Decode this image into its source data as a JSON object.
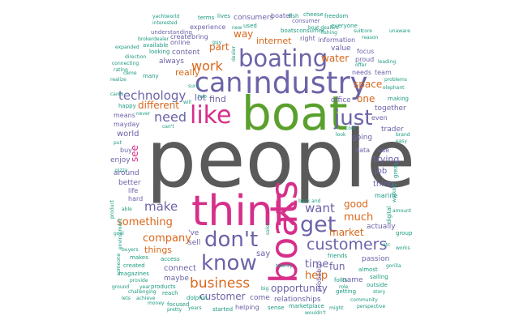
{
  "colors": {
    "gray": "#5a5a5a",
    "green": "#5aa02c",
    "purple": "#6b63a8",
    "magenta": "#d62f8a",
    "orange": "#d9671b",
    "teal": "#1c9a80"
  },
  "words": [
    {
      "text": "people",
      "color": "gray"
    },
    {
      "text": "boat",
      "color": "green"
    },
    {
      "text": "industry",
      "color": "purple"
    },
    {
      "text": "think",
      "color": "magenta"
    },
    {
      "text": "boating",
      "color": "purple"
    },
    {
      "text": "can",
      "color": "purple"
    },
    {
      "text": "like",
      "color": "magenta"
    },
    {
      "text": "boats",
      "color": "magenta"
    },
    {
      "text": "don't",
      "color": "purple"
    },
    {
      "text": "get",
      "color": "purple"
    },
    {
      "text": "just",
      "color": "purple"
    },
    {
      "text": "know",
      "color": "purple"
    },
    {
      "text": "customers",
      "color": "purple"
    },
    {
      "text": "business",
      "color": "orange"
    },
    {
      "text": "technology",
      "color": "purple"
    },
    {
      "text": "work",
      "color": "orange"
    },
    {
      "text": "need",
      "color": "purple"
    },
    {
      "text": "make",
      "color": "purple"
    },
    {
      "text": "want",
      "color": "purple"
    },
    {
      "text": "company",
      "color": "orange"
    },
    {
      "text": "something",
      "color": "orange"
    },
    {
      "text": "customer",
      "color": "purple"
    },
    {
      "text": "opportunity",
      "color": "purple"
    },
    {
      "text": "time",
      "color": "purple"
    },
    {
      "text": "help",
      "color": "orange"
    },
    {
      "text": "much",
      "color": "orange"
    },
    {
      "text": "market",
      "color": "orange"
    },
    {
      "text": "fun",
      "color": "purple"
    },
    {
      "text": "internet",
      "color": "orange"
    },
    {
      "text": "water",
      "color": "orange"
    },
    {
      "text": "space",
      "color": "orange"
    },
    {
      "text": "really",
      "color": "orange"
    },
    {
      "text": "different",
      "color": "orange"
    },
    {
      "text": "way",
      "color": "orange"
    },
    {
      "text": "part",
      "color": "orange"
    },
    {
      "text": "lot",
      "color": "purple"
    },
    {
      "text": "find",
      "color": "purple"
    },
    {
      "text": "one",
      "color": "orange"
    },
    {
      "text": "good",
      "color": "orange"
    },
    {
      "text": "things",
      "color": "orange"
    },
    {
      "text": "trying",
      "color": "purple"
    },
    {
      "text": "job",
      "color": "purple"
    },
    {
      "text": "thing",
      "color": "purple"
    },
    {
      "text": "see",
      "color": "magenta"
    },
    {
      "text": "world",
      "color": "purple"
    },
    {
      "text": "say",
      "color": "purple"
    },
    {
      "text": "connect",
      "color": "purple"
    },
    {
      "text": "'ve",
      "color": "purple"
    },
    {
      "text": "sell",
      "color": "purple"
    },
    {
      "text": "relationships",
      "color": "purple"
    },
    {
      "text": "come",
      "color": "purple"
    },
    {
      "text": "helping",
      "color": "purple"
    },
    {
      "text": "sense",
      "color": "teal"
    },
    {
      "text": "marketplace",
      "color": "teal"
    },
    {
      "text": "started",
      "color": "teal"
    },
    {
      "text": "name",
      "color": "purple"
    },
    {
      "text": "always",
      "color": "purple"
    },
    {
      "text": "content",
      "color": "purple"
    },
    {
      "text": "create",
      "color": "purple"
    },
    {
      "text": "bring",
      "color": "purple"
    },
    {
      "text": "experience",
      "color": "purple"
    },
    {
      "text": "online",
      "color": "purple"
    },
    {
      "text": "available",
      "color": "teal"
    },
    {
      "text": "looking",
      "color": "teal"
    },
    {
      "text": "value",
      "color": "purple"
    },
    {
      "text": "focus",
      "color": "purple"
    },
    {
      "text": "proud",
      "color": "purple"
    },
    {
      "text": "needs",
      "color": "purple"
    },
    {
      "text": "team",
      "color": "purple"
    },
    {
      "text": "together",
      "color": "purple"
    },
    {
      "text": "making",
      "color": "teal"
    },
    {
      "text": "even",
      "color": "purple"
    },
    {
      "text": "going",
      "color": "purple"
    },
    {
      "text": "trader",
      "color": "purple"
    },
    {
      "text": "data",
      "color": "purple"
    },
    {
      "text": "use",
      "color": "purple"
    },
    {
      "text": "great",
      "color": "teal"
    },
    {
      "text": "marine",
      "color": "teal"
    },
    {
      "text": "actually",
      "color": "purple"
    },
    {
      "text": "digital",
      "color": "teal"
    },
    {
      "text": "group",
      "color": "teal"
    },
    {
      "text": "around",
      "color": "purple"
    },
    {
      "text": "better",
      "color": "purple"
    },
    {
      "text": "enjoy",
      "color": "purple"
    },
    {
      "text": "buy",
      "color": "purple"
    },
    {
      "text": "life",
      "color": "purple"
    },
    {
      "text": "hard",
      "color": "purple"
    },
    {
      "text": "means",
      "color": "purple"
    },
    {
      "text": "mayday",
      "color": "purple"
    },
    {
      "text": "happy",
      "color": "teal"
    },
    {
      "text": "folks",
      "color": "teal"
    },
    {
      "text": "getting",
      "color": "teal"
    },
    {
      "text": "sailing",
      "color": "teal"
    },
    {
      "text": "outside",
      "color": "teal"
    },
    {
      "text": "passion",
      "color": "purple"
    },
    {
      "text": "almost",
      "color": "teal"
    },
    {
      "text": "friends",
      "color": "teal"
    },
    {
      "text": "probably",
      "color": "purple"
    },
    {
      "text": "maybe",
      "color": "purple"
    },
    {
      "text": "dolphin",
      "color": "teal"
    },
    {
      "text": "focused",
      "color": "teal"
    },
    {
      "text": "products",
      "color": "teal"
    },
    {
      "text": "reach",
      "color": "teal"
    },
    {
      "text": "access",
      "color": "teal"
    },
    {
      "text": "makes",
      "color": "teal"
    },
    {
      "text": "created",
      "color": "teal"
    },
    {
      "text": "magazines",
      "color": "teal"
    },
    {
      "text": "provide",
      "color": "teal"
    },
    {
      "text": "year",
      "color": "teal"
    },
    {
      "text": "buyers",
      "color": "teal"
    },
    {
      "text": "environment",
      "color": "teal"
    },
    {
      "text": "someone",
      "color": "teal"
    },
    {
      "text": "consumers",
      "color": "purple"
    },
    {
      "text": "boater",
      "color": "purple"
    },
    {
      "text": "fish",
      "color": "teal"
    },
    {
      "text": "cheese",
      "color": "teal"
    },
    {
      "text": "freedom",
      "color": "teal"
    },
    {
      "text": "everyone",
      "color": "teal"
    },
    {
      "text": "information",
      "color": "purple"
    },
    {
      "text": "right",
      "color": "purple"
    },
    {
      "text": "consumer",
      "color": "purple"
    },
    {
      "text": "boatsconsumer",
      "color": "teal"
    },
    {
      "text": "used",
      "color": "teal"
    },
    {
      "text": "understanding",
      "color": "purple"
    },
    {
      "text": "terms",
      "color": "teal"
    },
    {
      "text": "lives",
      "color": "teal"
    },
    {
      "text": "yachtworld",
      "color": "teal"
    },
    {
      "text": "office",
      "color": "purple"
    },
    {
      "text": "problems",
      "color": "teal"
    },
    {
      "text": "leading",
      "color": "teal"
    },
    {
      "text": "reason",
      "color": "teal"
    },
    {
      "text": "pizza",
      "color": "teal"
    },
    {
      "text": "direction",
      "color": "teal"
    },
    {
      "text": "many",
      "color": "teal"
    },
    {
      "text": "realize",
      "color": "teal"
    },
    {
      "text": "connecting",
      "color": "teal"
    },
    {
      "text": "working",
      "color": "teal"
    },
    {
      "text": "back and",
      "color": "teal"
    },
    {
      "text": "years",
      "color": "teal"
    },
    {
      "text": "pretty",
      "color": "teal"
    },
    {
      "text": "challenging",
      "color": "teal"
    },
    {
      "text": "community",
      "color": "teal"
    },
    {
      "text": "story",
      "color": "teal"
    },
    {
      "text": "might",
      "color": "teal"
    },
    {
      "text": "perspective",
      "color": "teal"
    },
    {
      "text": "role",
      "color": "teal"
    },
    {
      "text": "twenty",
      "color": "teal"
    },
    {
      "text": "can't",
      "color": "teal"
    },
    {
      "text": "will",
      "color": "teal"
    },
    {
      "text": "two",
      "color": "teal"
    },
    {
      "text": "sales",
      "color": "teal"
    },
    {
      "text": "big",
      "color": "teal"
    },
    {
      "text": "lets",
      "color": "teal"
    },
    {
      "text": "goal",
      "color": "teal"
    },
    {
      "text": "product",
      "color": "teal"
    },
    {
      "text": "interested",
      "color": "teal"
    },
    {
      "text": "brokerdealer",
      "color": "teal"
    },
    {
      "text": "dealer",
      "color": "teal"
    },
    {
      "text": "new",
      "color": "teal"
    },
    {
      "text": "guy",
      "color": "teal"
    },
    {
      "text": "boat dealers",
      "color": "teal"
    },
    {
      "text": "core",
      "color": "teal"
    },
    {
      "text": "etc",
      "color": "teal"
    },
    {
      "text": "easy",
      "color": "teal"
    },
    {
      "text": "brand",
      "color": "teal"
    },
    {
      "text": "works",
      "color": "teal"
    },
    {
      "text": "unaware",
      "color": "teal"
    },
    {
      "text": "elephant",
      "color": "teal"
    },
    {
      "text": "gorilla",
      "color": "teal"
    },
    {
      "text": "offer",
      "color": "teal"
    },
    {
      "text": "came",
      "color": "teal"
    },
    {
      "text": "wouldn't",
      "color": "teal"
    },
    {
      "text": "put",
      "color": "teal"
    },
    {
      "text": "able",
      "color": "teal"
    },
    {
      "text": "expanded",
      "color": "teal"
    },
    {
      "text": "sure",
      "color": "teal"
    },
    {
      "text": "rating",
      "color": "teal"
    },
    {
      "text": "achieve",
      "color": "teal"
    },
    {
      "text": "money",
      "color": "teal"
    },
    {
      "text": "fishing",
      "color": "teal"
    },
    {
      "text": "look",
      "color": "teal"
    },
    {
      "text": "suit",
      "color": "teal"
    },
    {
      "text": "ground",
      "color": "teal"
    },
    {
      "text": "amount",
      "color": "teal"
    },
    {
      "text": "cool",
      "color": "teal"
    },
    {
      "text": "cares",
      "color": "teal"
    },
    {
      "text": "never",
      "color": "teal"
    }
  ]
}
